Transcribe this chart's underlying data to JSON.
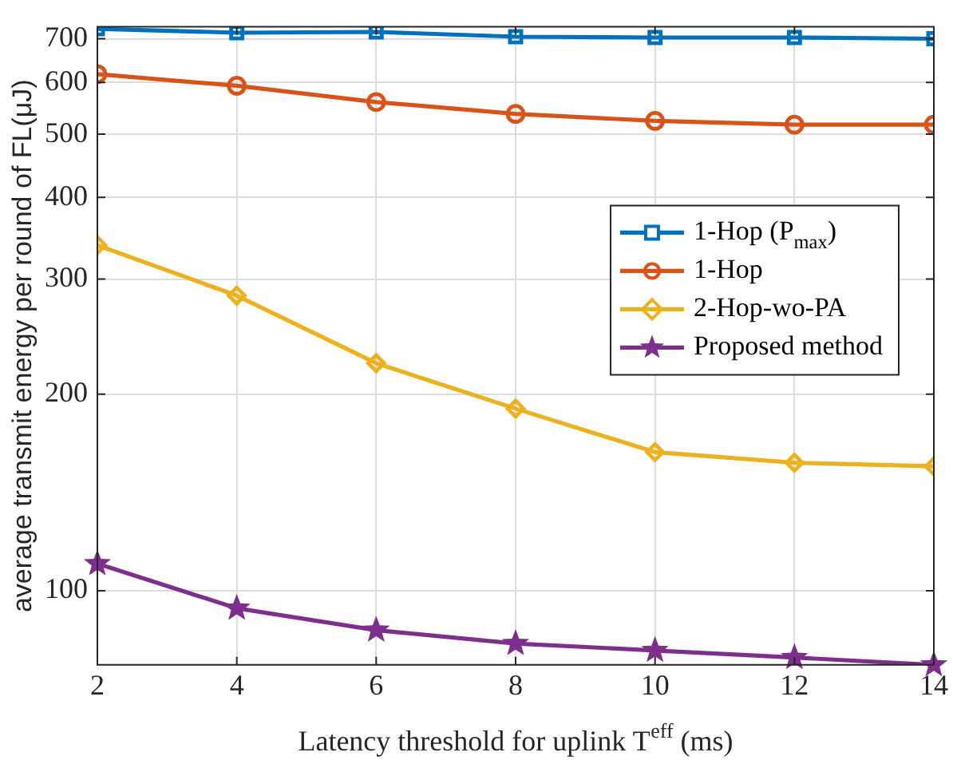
{
  "chart_data": {
    "type": "line",
    "xlabel": "Latency threshold for uplink T$^{eff}$ (ms)",
    "ylabel": "average transmit energy per round of FL(μJ)",
    "x": [
      2,
      4,
      6,
      8,
      10,
      12,
      14
    ],
    "xlim": [
      2,
      14
    ],
    "xticks": [
      2,
      4,
      6,
      8,
      10,
      12,
      14
    ],
    "ylim": [
      77,
      730
    ],
    "yticks": [
      100,
      200,
      300,
      400,
      500,
      600,
      700
    ],
    "log": "y",
    "grid": true,
    "legend": "right",
    "series": [
      {
        "name": "1-Hop (P$_{max}$)",
        "color": "#0072bd",
        "marker": "square",
        "values": [
          725,
          715,
          717,
          705,
          703,
          703,
          700
        ]
      },
      {
        "name": "1-Hop",
        "color": "#d95319",
        "marker": "circle",
        "values": [
          618,
          593,
          560,
          537,
          524,
          517,
          517
        ]
      },
      {
        "name": "2-Hop-wo-PA",
        "color": "#edb120",
        "marker": "diamond",
        "values": [
          338,
          283,
          223,
          190,
          163,
          157,
          155
        ]
      },
      {
        "name": "Proposed method",
        "color": "#7e2f8e",
        "marker": "star",
        "values": [
          110,
          94,
          87,
          83,
          81,
          79,
          77
        ]
      }
    ]
  }
}
